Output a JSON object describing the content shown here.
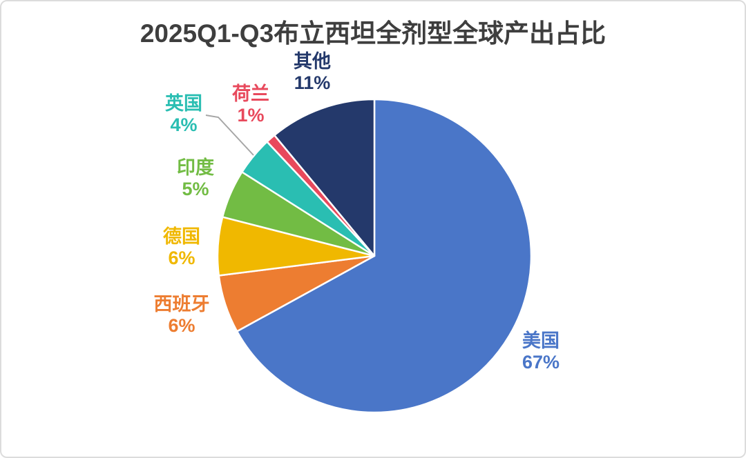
{
  "title": "2025Q1-Q3布立西坦全剂型全球产出占比",
  "title_color": "#3e3e3e",
  "card_border_color": "#dcdcdc",
  "chart_data": {
    "type": "pie",
    "title": "2025Q1-Q3布立西坦全剂型全球产出占比",
    "start_angle_deg": 0,
    "direction": "clockwise",
    "total": 100,
    "slices": [
      {
        "label": "美国",
        "value_pct": 67,
        "display": "67%",
        "color": "#4a76c8"
      },
      {
        "label": "西班牙",
        "value_pct": 6,
        "display": "6%",
        "color": "#ed7d31"
      },
      {
        "label": "德国",
        "value_pct": 6,
        "display": "6%",
        "color": "#f0b800"
      },
      {
        "label": "印度",
        "value_pct": 5,
        "display": "5%",
        "color": "#72bc44"
      },
      {
        "label": "英国",
        "value_pct": 4,
        "display": "4%",
        "color": "#2abeb2"
      },
      {
        "label": "荷兰",
        "value_pct": 1,
        "display": "1%",
        "color": "#e8495c"
      },
      {
        "label": "其他",
        "value_pct": 11,
        "display": "11%",
        "color": "#24396b"
      }
    ],
    "leader_line": {
      "connects": "英国",
      "color": "#a6a6a6",
      "points": [
        [
          296,
          165
        ],
        [
          314,
          168
        ],
        [
          365,
          223
        ]
      ]
    },
    "slice_border_color": "#ffffff",
    "legend": "none",
    "labels_outside": true
  }
}
